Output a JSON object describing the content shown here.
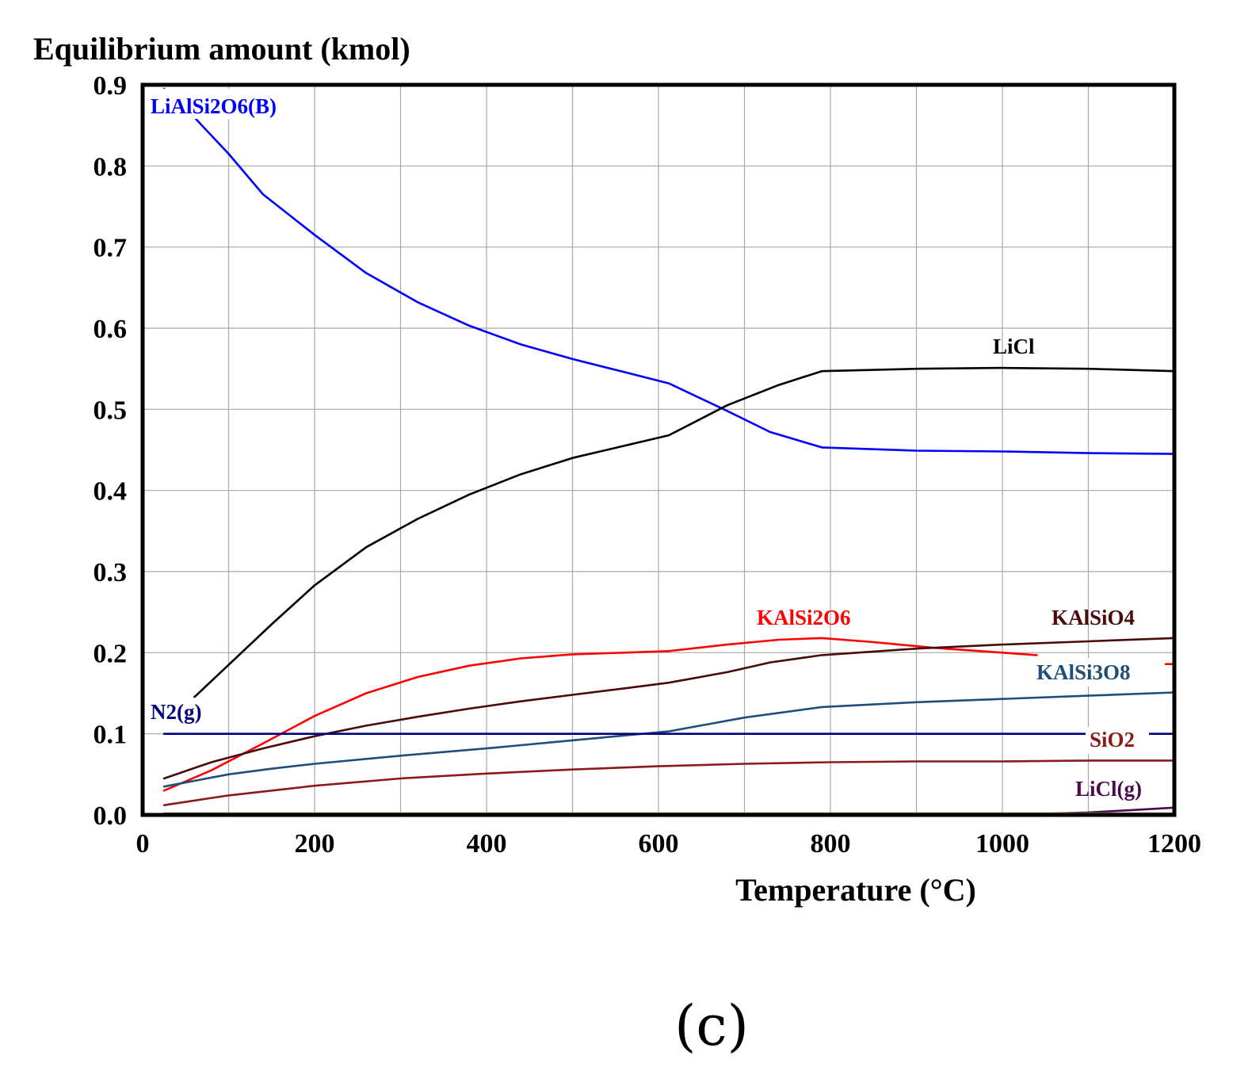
{
  "chart_data": {
    "type": "line",
    "ylabel": "Equilibrium amount (kmol)",
    "xlabel": "Temperature (°C)",
    "panel_label": "(c)",
    "xlim": [
      0,
      1200
    ],
    "ylim": [
      0,
      0.9
    ],
    "x_ticks": [
      0,
      200,
      400,
      600,
      800,
      1000,
      1200
    ],
    "x_tick_labels": [
      "0",
      "200",
      "400",
      "600",
      "800",
      "1000",
      "1200"
    ],
    "y_ticks": [
      0,
      0.1,
      0.2,
      0.3,
      0.4,
      0.5,
      0.6,
      0.7,
      0.8,
      0.9
    ],
    "y_tick_labels": [
      "0.0",
      "0.1",
      "0.2",
      "0.3",
      "0.4",
      "0.5",
      "0.6",
      "0.7",
      "0.8",
      "0.9"
    ],
    "x_grid_step": 100,
    "grid": true,
    "series": [
      {
        "name": "LiAlSi2O6(B)",
        "label": "LiAlSi2O6(B)",
        "color": "#0000ff",
        "x": [
          25,
          60,
          100,
          140,
          200,
          260,
          320,
          380,
          440,
          500,
          560,
          612,
          680,
          730,
          790,
          900,
          1000,
          1100,
          1200
        ],
        "y": [
          0.895,
          0.86,
          0.815,
          0.765,
          0.715,
          0.668,
          0.632,
          0.603,
          0.58,
          0.562,
          0.546,
          0.532,
          0.498,
          0.472,
          0.453,
          0.449,
          0.448,
          0.446,
          0.445
        ]
      },
      {
        "name": "LiCl",
        "label": "LiCl",
        "color": "#000000",
        "x": [
          60,
          100,
          150,
          200,
          260,
          320,
          380,
          440,
          500,
          560,
          612,
          680,
          740,
          790,
          900,
          1000,
          1100,
          1200
        ],
        "y": [
          0.145,
          0.185,
          0.235,
          0.283,
          0.33,
          0.365,
          0.395,
          0.42,
          0.44,
          0.455,
          0.468,
          0.505,
          0.53,
          0.547,
          0.55,
          0.551,
          0.55,
          0.547
        ]
      },
      {
        "name": "KAlSi2O6",
        "label": "KAlSi2O6",
        "color": "#ff0000",
        "x": [
          25,
          80,
          140,
          200,
          260,
          320,
          380,
          440,
          500,
          560,
          612,
          680,
          740,
          790,
          850,
          920,
          1000,
          1040
        ],
        "y": [
          0.03,
          0.055,
          0.088,
          0.122,
          0.15,
          0.17,
          0.184,
          0.193,
          0.198,
          0.2,
          0.202,
          0.21,
          0.216,
          0.218,
          0.213,
          0.206,
          0.2,
          0.197
        ]
      },
      {
        "name": "KAlSi2O6 (segment)",
        "color": "#ff0000",
        "x": [
          1190,
          1200
        ],
        "y": [
          0.186,
          0.186
        ]
      },
      {
        "name": "KAlSi3O8",
        "label": "KAlSi3O8",
        "color": "#1f4e79",
        "x": [
          25,
          100,
          150,
          200,
          300,
          400,
          500,
          612,
          700,
          790,
          900,
          1000,
          1100,
          1200
        ],
        "y": [
          0.035,
          0.05,
          0.057,
          0.063,
          0.073,
          0.082,
          0.092,
          0.103,
          0.12,
          0.133,
          0.139,
          0.143,
          0.147,
          0.151
        ]
      },
      {
        "name": "KAlSiO4",
        "label": "KAlSiO4",
        "color": "#4a0a0a",
        "x": [
          25,
          80,
          140,
          200,
          260,
          320,
          380,
          440,
          500,
          560,
          612,
          680,
          730,
          790,
          900,
          1000,
          1100,
          1200
        ],
        "y": [
          0.045,
          0.065,
          0.082,
          0.097,
          0.11,
          0.121,
          0.131,
          0.14,
          0.148,
          0.156,
          0.163,
          0.176,
          0.188,
          0.197,
          0.205,
          0.21,
          0.214,
          0.218
        ]
      },
      {
        "name": "N2(g)",
        "label": "N2(g)",
        "color": "#000080",
        "x": [
          25,
          1200
        ],
        "y": [
          0.1,
          0.1
        ]
      },
      {
        "name": "SiO2",
        "label": "SiO2",
        "color": "#8b1a1a",
        "x": [
          25,
          100,
          200,
          300,
          400,
          500,
          600,
          700,
          800,
          900,
          1000,
          1100,
          1200
        ],
        "y": [
          0.012,
          0.024,
          0.036,
          0.045,
          0.051,
          0.056,
          0.06,
          0.063,
          0.065,
          0.066,
          0.066,
          0.067,
          0.067
        ]
      },
      {
        "name": "LiCl(g)",
        "label": "LiCl(g)",
        "color": "#4b0a4b",
        "x": [
          25,
          1000,
          1100,
          1150,
          1200
        ],
        "y": [
          0.0,
          0.0,
          0.003,
          0.006,
          0.009
        ]
      },
      {
        "name": "baseline",
        "color": "#8a8a3a",
        "x": [
          25,
          1200
        ],
        "y": [
          0.002,
          0.002
        ]
      }
    ]
  }
}
